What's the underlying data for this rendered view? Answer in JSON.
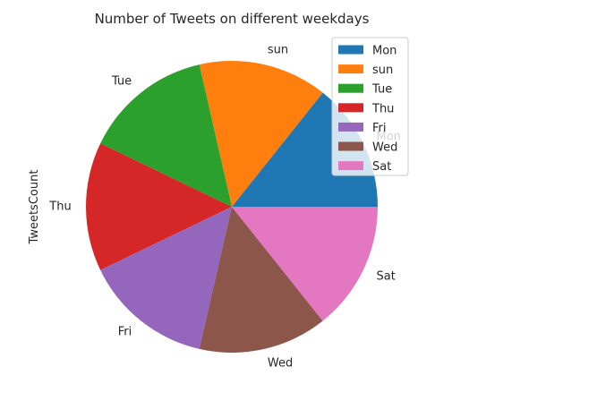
{
  "chart_data": {
    "type": "pie",
    "title": "Number of Tweets on different weekdays",
    "ylabel": "TweetsCount",
    "categories": [
      "Mon",
      "sun",
      "Tue",
      "Thu",
      "Fri",
      "Wed",
      "Sat"
    ],
    "values": [
      1,
      1,
      1,
      1,
      1,
      1,
      1
    ],
    "colors": [
      "#1f77b4",
      "#ff7f0e",
      "#2ca02c",
      "#d62728",
      "#9467bd",
      "#8c564b",
      "#e377c2"
    ],
    "legend": {
      "placement": "upper-right",
      "entries": [
        "Mon",
        "sun",
        "Tue",
        "Thu",
        "Fri",
        "Wed",
        "Sat"
      ]
    }
  }
}
